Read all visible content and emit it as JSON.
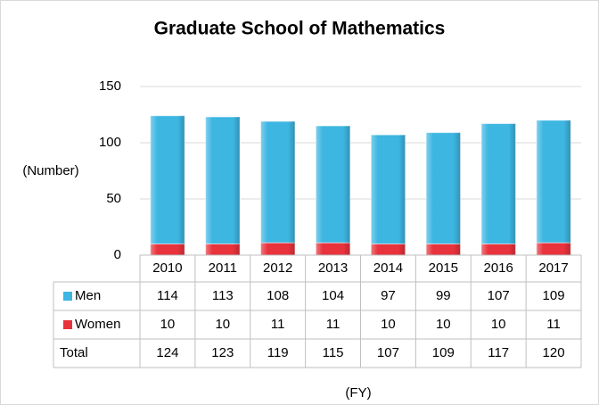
{
  "chart_data": {
    "type": "bar",
    "stacked": true,
    "title": "Graduate School of Mathematics",
    "y_label": "(Number)",
    "x_label": "(FY)",
    "categories": [
      "2010",
      "2011",
      "2012",
      "2013",
      "2014",
      "2015",
      "2016",
      "2017"
    ],
    "series": [
      {
        "name": "Men",
        "color": "#3db6e2",
        "values": [
          114,
          113,
          108,
          104,
          97,
          99,
          107,
          109
        ]
      },
      {
        "name": "Women",
        "color": "#e8323c",
        "values": [
          10,
          10,
          11,
          11,
          10,
          10,
          10,
          11
        ]
      }
    ],
    "total_label": "Total",
    "totals": [
      124,
      123,
      119,
      115,
      107,
      109,
      117,
      120
    ],
    "ylim": [
      0,
      150
    ],
    "yticks": [
      0,
      50,
      100,
      150
    ],
    "grid": true
  }
}
